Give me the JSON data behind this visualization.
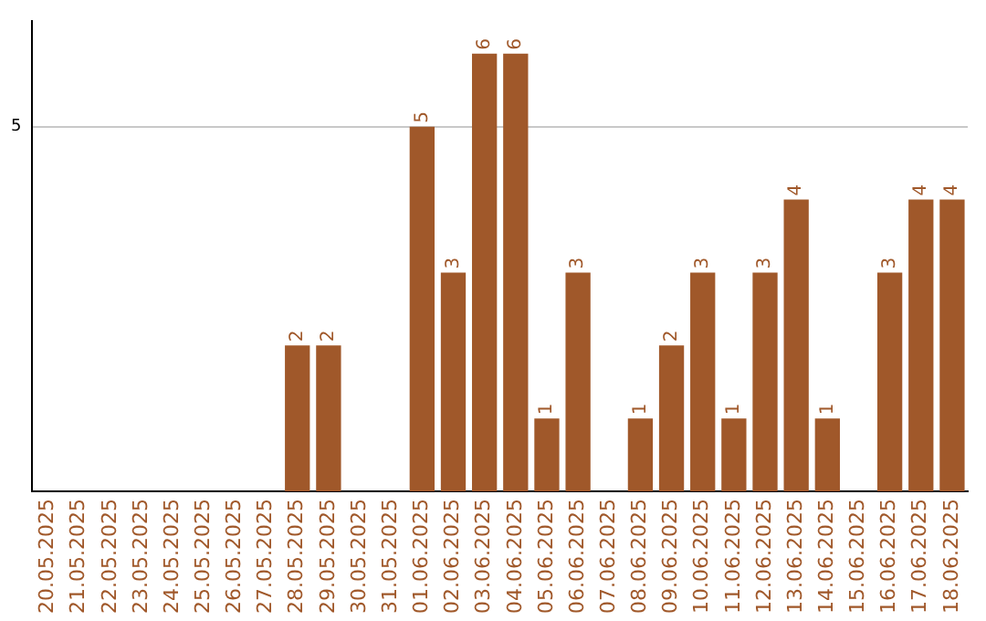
{
  "chart_data": {
    "type": "bar",
    "categories": [
      "20.05.2025",
      "21.05.2025",
      "22.05.2025",
      "23.05.2025",
      "24.05.2025",
      "25.05.2025",
      "26.05.2025",
      "27.05.2025",
      "28.05.2025",
      "29.05.2025",
      "30.05.2025",
      "31.05.2025",
      "01.06.2025",
      "02.06.2025",
      "03.06.2025",
      "04.06.2025",
      "05.06.2025",
      "06.06.2025",
      "07.06.2025",
      "08.06.2025",
      "09.06.2025",
      "10.06.2025",
      "11.06.2025",
      "12.06.2025",
      "13.06.2025",
      "14.06.2025",
      "15.06.2025",
      "16.06.2025",
      "17.06.2025",
      "18.06.2025"
    ],
    "values": [
      0,
      0,
      0,
      0,
      0,
      0,
      0,
      0,
      2,
      2,
      0,
      0,
      5,
      3,
      6,
      6,
      1,
      3,
      0,
      1,
      2,
      3,
      1,
      3,
      4,
      1,
      0,
      3,
      4,
      4
    ],
    "value_labels": [
      null,
      null,
      null,
      null,
      null,
      null,
      null,
      null,
      "2",
      "2",
      null,
      null,
      "5",
      "3",
      "6",
      "6",
      "1",
      "3",
      null,
      "1",
      "2",
      "3",
      "1",
      "3",
      "4",
      "1",
      null,
      "3",
      "4",
      "4"
    ],
    "color": "#a0582a",
    "ylim": [
      0,
      6.45
    ],
    "yticks": [
      5
    ],
    "grid": "y",
    "legend": false
  }
}
